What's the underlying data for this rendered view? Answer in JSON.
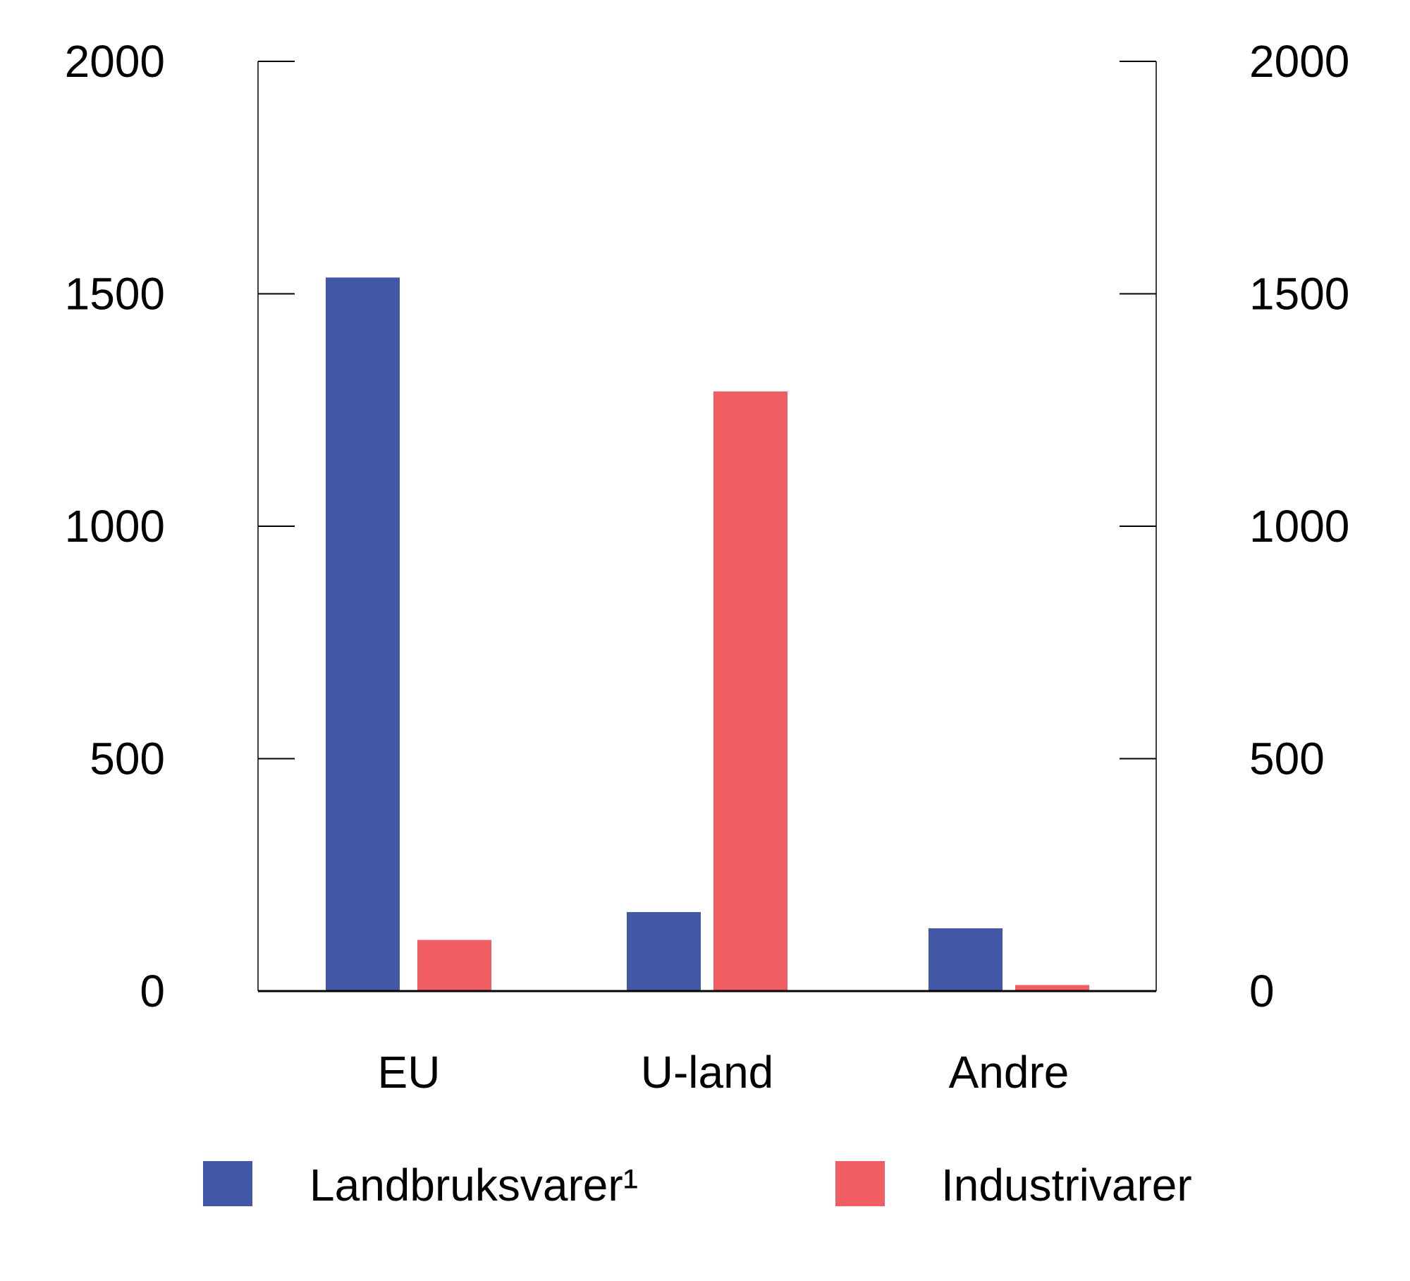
{
  "chart_data": {
    "type": "bar",
    "categories": [
      "EU",
      "U-land",
      "Andre"
    ],
    "series": [
      {
        "name": "Landbruksvarer¹",
        "color": "#4257a6",
        "values": [
          1535,
          170,
          135
        ]
      },
      {
        "name": "Industrivarer",
        "color": "#f05d63",
        "values": [
          110,
          1290,
          13
        ]
      }
    ],
    "ylim": [
      0,
      2000
    ],
    "yticks": [
      "0",
      "500",
      "1000",
      "1500",
      "2000"
    ],
    "ytick_values": [
      0,
      500,
      1000,
      1500,
      2000
    ],
    "secondary_y_axis": true,
    "grid": false,
    "legend_position": "bottom",
    "title": "",
    "xlabel": "",
    "ylabel": ""
  }
}
